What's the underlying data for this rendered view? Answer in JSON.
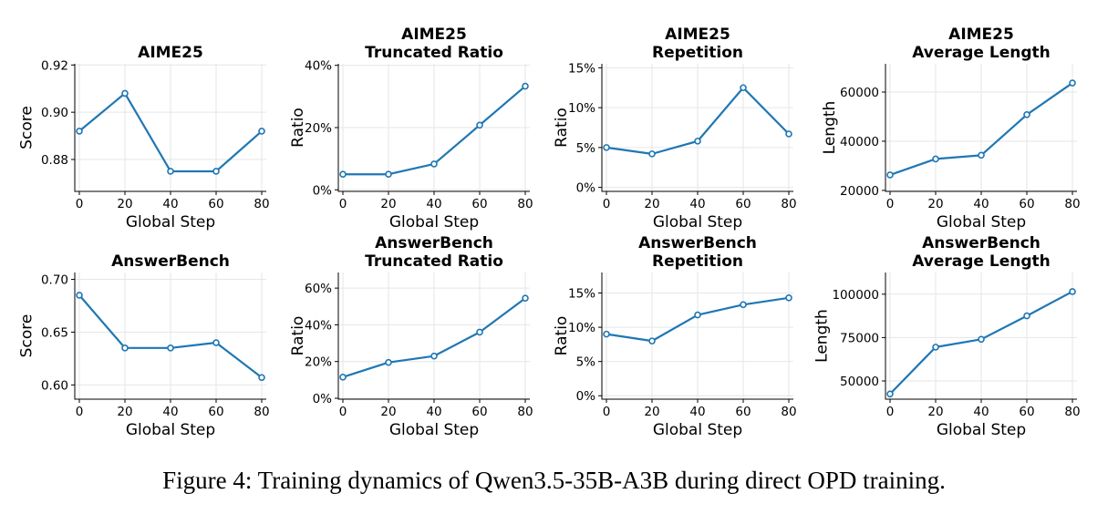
{
  "caption": "Figure 4: Training dynamics of Qwen3.5-35B-A3B during direct OPD training.",
  "colors": {
    "line": "#1f77b4",
    "grid": "#e6e6e6",
    "axis": "#000000"
  },
  "chart_data": [
    {
      "type": "line",
      "title": [
        "AIME25"
      ],
      "xlabel": "Global Step",
      "ylabel": "Score",
      "x": [
        0,
        20,
        40,
        60,
        80
      ],
      "y": [
        0.892,
        0.908,
        0.875,
        0.875,
        0.892
      ],
      "xlim": [
        -2,
        82
      ],
      "xticks": [
        0,
        20,
        40,
        60,
        80
      ],
      "xtick_labels": [
        "0",
        "20",
        "40",
        "60",
        "80"
      ],
      "ylim": [
        0.8665,
        0.9205
      ],
      "yticks": [
        0.88,
        0.9,
        0.92
      ],
      "ytick_labels": [
        "0.88",
        "0.90",
        "0.92"
      ],
      "grid": true,
      "markers": true
    },
    {
      "type": "line",
      "title": [
        "AIME25",
        "Truncated Ratio"
      ],
      "xlabel": "Global Step",
      "ylabel": "Ratio",
      "x": [
        0,
        20,
        40,
        60,
        80
      ],
      "y": [
        5,
        5,
        8.3,
        20.8,
        33.3
      ],
      "xlim": [
        -2,
        82
      ],
      "xticks": [
        0,
        20,
        40,
        60,
        80
      ],
      "xtick_labels": [
        "0",
        "20",
        "40",
        "60",
        "80"
      ],
      "ylim": [
        -0.5,
        40.5
      ],
      "yticks": [
        0,
        20,
        40
      ],
      "ytick_labels": [
        "0%",
        "20%",
        "40%"
      ],
      "grid": true,
      "markers": true
    },
    {
      "type": "line",
      "title": [
        "AIME25",
        "Repetition"
      ],
      "xlabel": "Global Step",
      "ylabel": "Ratio",
      "x": [
        0,
        20,
        40,
        60,
        80
      ],
      "y": [
        5,
        4.2,
        5.8,
        12.5,
        6.7
      ],
      "xlim": [
        -2,
        82
      ],
      "xticks": [
        0,
        20,
        40,
        60,
        80
      ],
      "xtick_labels": [
        "0",
        "20",
        "40",
        "60",
        "80"
      ],
      "ylim": [
        -0.5,
        15.5
      ],
      "yticks": [
        0,
        5,
        10,
        15
      ],
      "ytick_labels": [
        "0%",
        "5%",
        "10%",
        "15%"
      ],
      "grid": true,
      "markers": true
    },
    {
      "type": "line",
      "title": [
        "AIME25",
        "Average Length"
      ],
      "xlabel": "Global Step",
      "ylabel": "Length",
      "x": [
        0,
        20,
        40,
        60,
        80
      ],
      "y": [
        26300,
        32800,
        34300,
        50800,
        63700
      ],
      "xlim": [
        -2,
        82
      ],
      "xticks": [
        0,
        20,
        40,
        60,
        80
      ],
      "xtick_labels": [
        "0",
        "20",
        "40",
        "60",
        "80"
      ],
      "ylim": [
        19600,
        71500
      ],
      "yticks": [
        20000,
        40000,
        60000
      ],
      "ytick_labels": [
        "20000",
        "40000",
        "60000"
      ],
      "grid": true,
      "markers": true
    },
    {
      "type": "line",
      "title": [
        "AnswerBench"
      ],
      "xlabel": "Global Step",
      "ylabel": "Score",
      "x": [
        0,
        20,
        40,
        60,
        80
      ],
      "y": [
        0.685,
        0.635,
        0.635,
        0.64,
        0.607
      ],
      "xlim": [
        -2,
        82
      ],
      "xticks": [
        0,
        20,
        40,
        60,
        80
      ],
      "xtick_labels": [
        "0",
        "20",
        "40",
        "60",
        "80"
      ],
      "ylim": [
        0.5865,
        0.7065
      ],
      "yticks": [
        0.6,
        0.65,
        0.7
      ],
      "ytick_labels": [
        "0.60",
        "0.65",
        "0.70"
      ],
      "grid": true,
      "markers": true
    },
    {
      "type": "line",
      "title": [
        "AnswerBench",
        "Truncated Ratio"
      ],
      "xlabel": "Global Step",
      "ylabel": "Ratio",
      "x": [
        0,
        20,
        40,
        60,
        80
      ],
      "y": [
        11.5,
        19.5,
        23,
        36,
        54.5
      ],
      "xlim": [
        -2,
        82
      ],
      "xticks": [
        0,
        20,
        40,
        60,
        80
      ],
      "xtick_labels": [
        "0",
        "20",
        "40",
        "60",
        "80"
      ],
      "ylim": [
        -0.5,
        68.5
      ],
      "yticks": [
        0,
        20,
        40,
        60
      ],
      "ytick_labels": [
        "0%",
        "20%",
        "40%",
        "60%"
      ],
      "grid": true,
      "markers": true
    },
    {
      "type": "line",
      "title": [
        "AnswerBench",
        "Repetition"
      ],
      "xlabel": "Global Step",
      "ylabel": "Ratio",
      "x": [
        0,
        20,
        40,
        60,
        80
      ],
      "y": [
        9,
        8,
        11.8,
        13.3,
        14.3
      ],
      "xlim": [
        -2,
        82
      ],
      "xticks": [
        0,
        20,
        40,
        60,
        80
      ],
      "xtick_labels": [
        "0",
        "20",
        "40",
        "60",
        "80"
      ],
      "ylim": [
        -0.5,
        18
      ],
      "yticks": [
        0,
        5,
        10,
        15
      ],
      "ytick_labels": [
        "0%",
        "5%",
        "10%",
        "15%"
      ],
      "grid": true,
      "markers": true
    },
    {
      "type": "line",
      "title": [
        "AnswerBench",
        "Average Length"
      ],
      "xlabel": "Global Step",
      "ylabel": "Length",
      "x": [
        0,
        20,
        40,
        60,
        80
      ],
      "y": [
        42500,
        69500,
        74000,
        87500,
        101500
      ],
      "xlim": [
        -2,
        82
      ],
      "xticks": [
        0,
        20,
        40,
        60,
        80
      ],
      "xtick_labels": [
        "0",
        "20",
        "40",
        "60",
        "80"
      ],
      "ylim": [
        39500,
        112500
      ],
      "yticks": [
        50000,
        75000,
        100000
      ],
      "ytick_labels": [
        "50000",
        "75000",
        "100000"
      ],
      "grid": true,
      "markers": true
    }
  ]
}
